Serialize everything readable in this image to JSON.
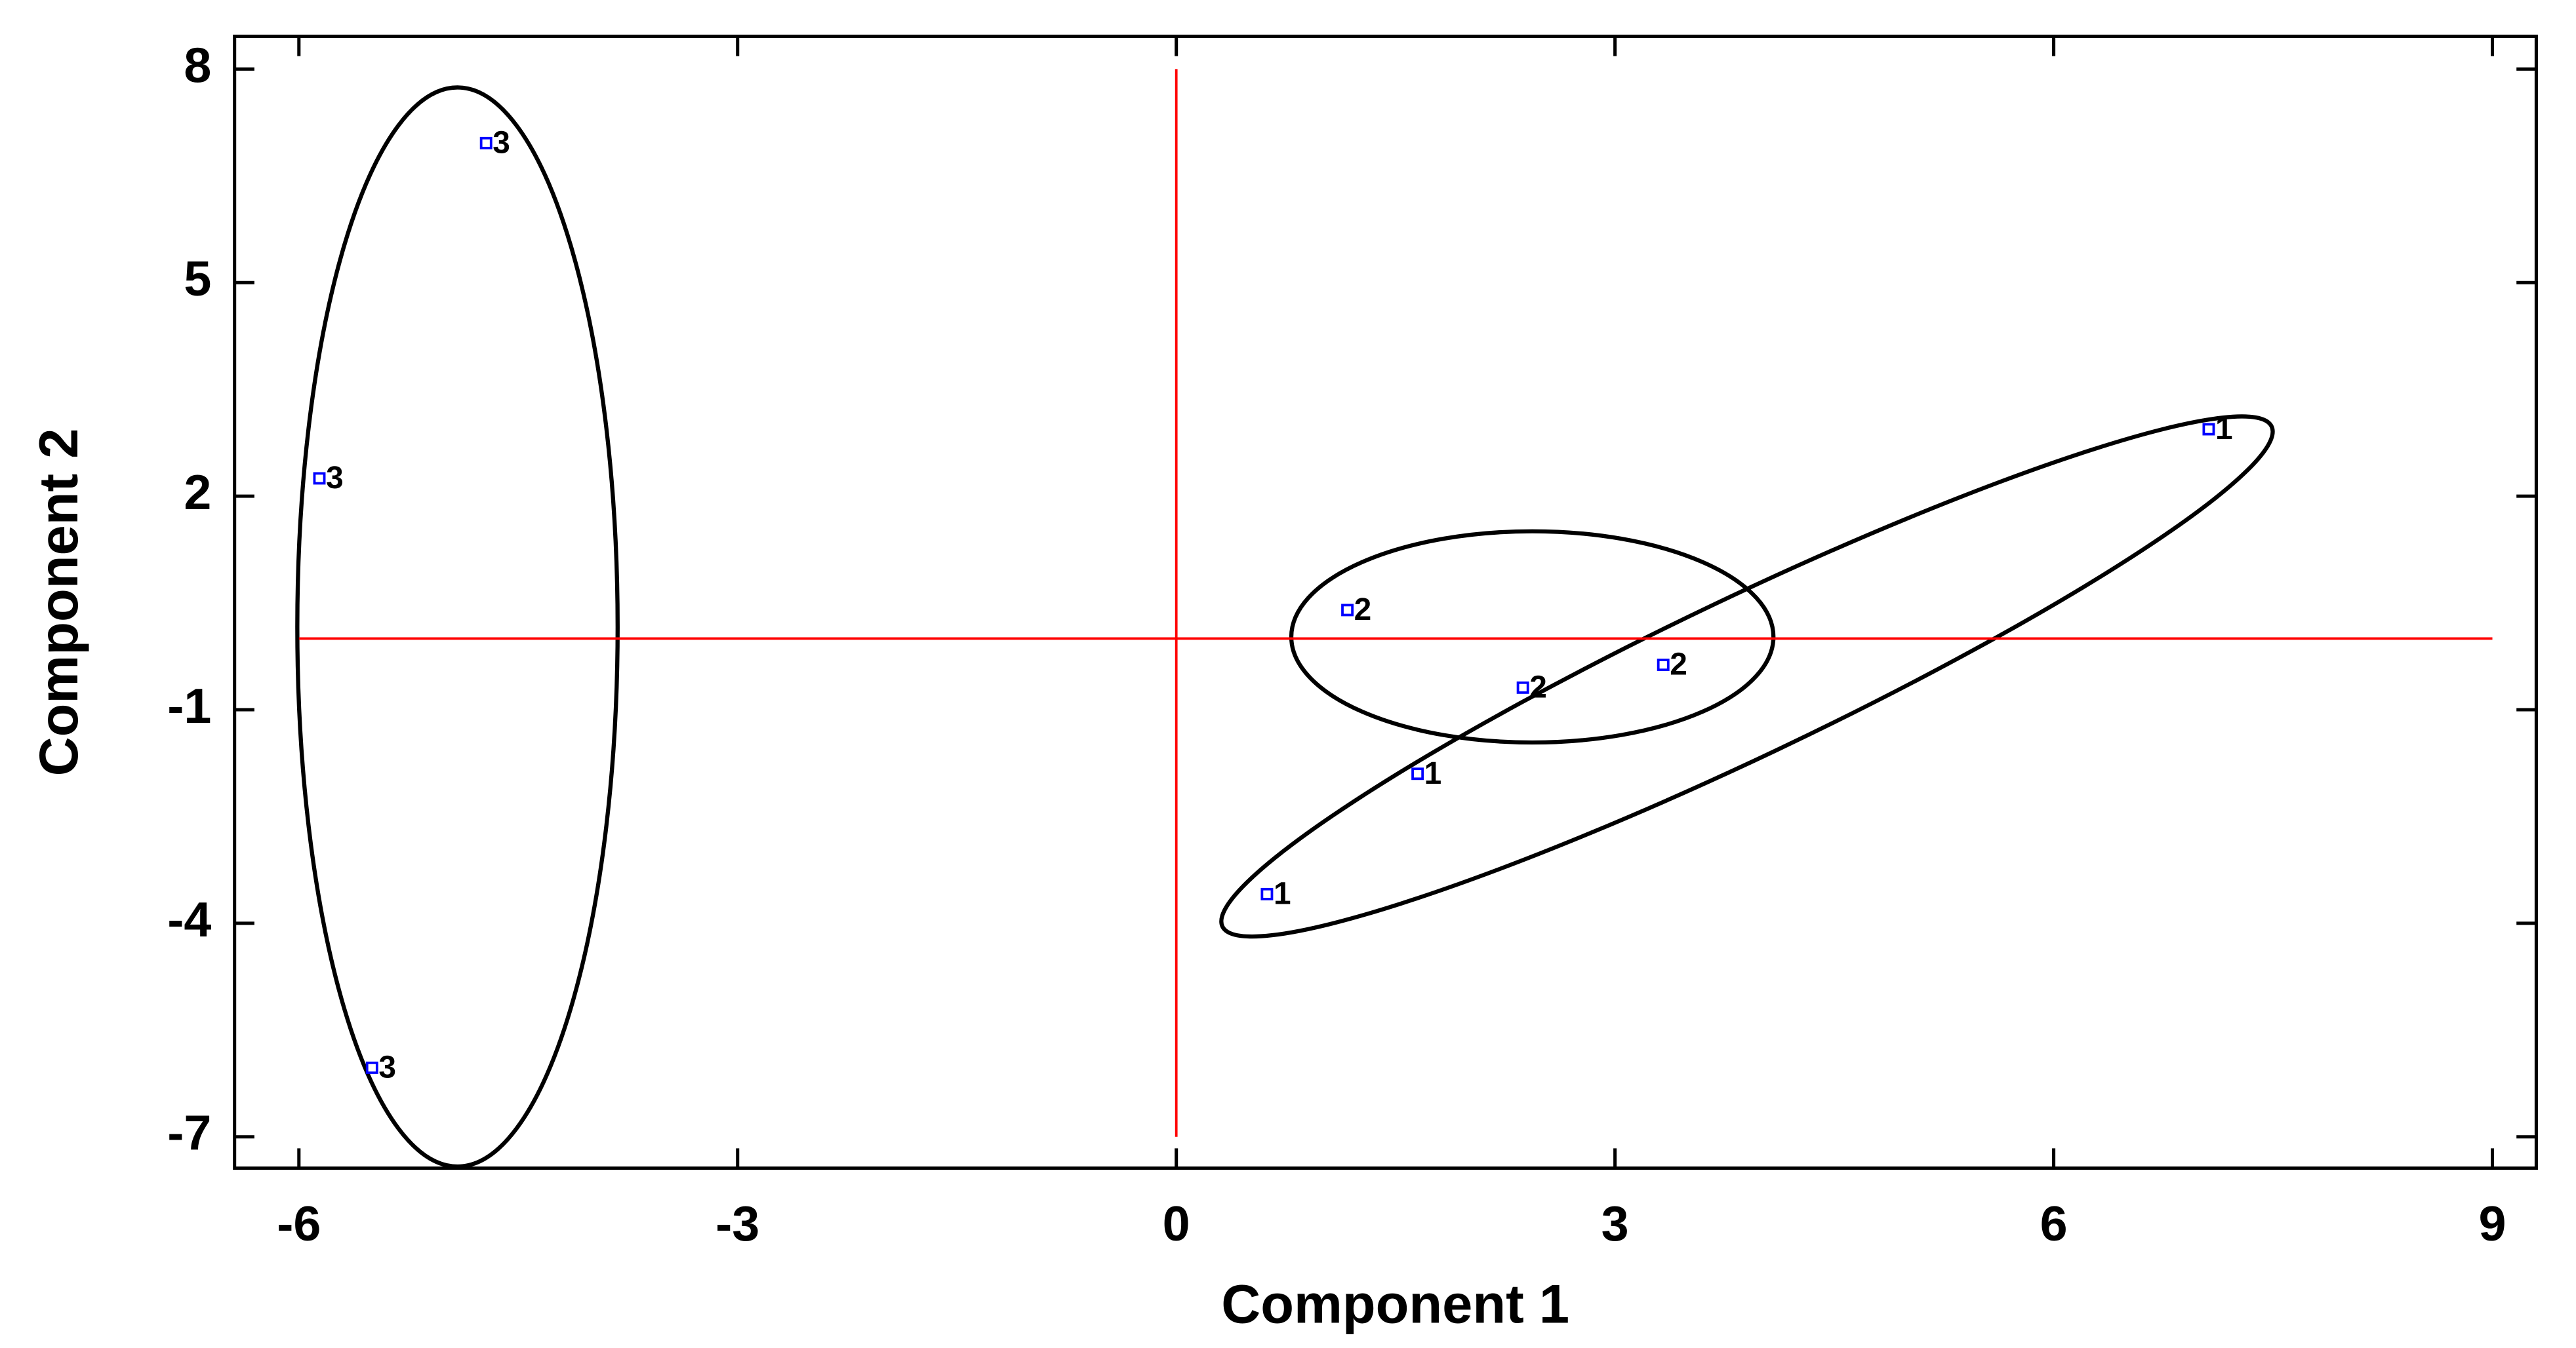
{
  "chart_data": {
    "type": "scatter",
    "x_label": "Component 1",
    "y_label": "Component 2",
    "series": [
      {
        "color": "#0000ff",
        "x": [
          -4.72,
          -5.86,
          -5.5,
          1.17,
          2.37,
          3.33,
          1.65,
          0.62,
          7.06
        ],
        "values": [
          6.96,
          2.25,
          -6.03,
          0.4,
          -0.69,
          -0.37,
          -1.9,
          -3.59,
          2.94
        ],
        "labels": [
          "3",
          "3",
          "3",
          "2",
          "2",
          "2",
          "1",
          "1",
          "1"
        ]
      }
    ],
    "xlim": [
      -6.44,
      9.3
    ],
    "ylim": [
      -7.44,
      8.46
    ],
    "xticks": [
      -6,
      -3,
      0,
      3,
      6,
      9
    ],
    "yticks": [
      8,
      5,
      2,
      -1,
      -4,
      -7
    ],
    "reference_line_color": "#ff0000"
  }
}
